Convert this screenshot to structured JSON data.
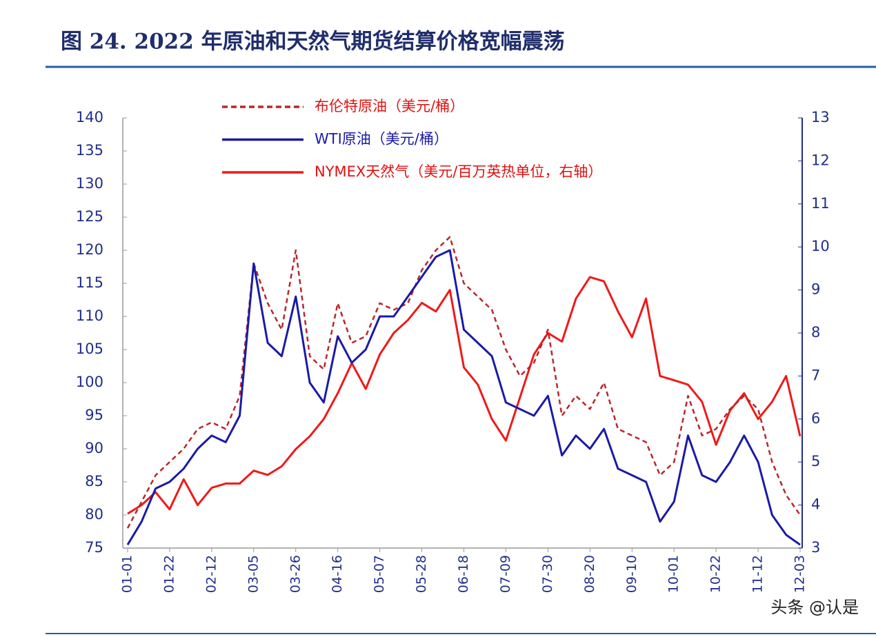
{
  "chart_data": {
    "type": "line",
    "title": "图 24. 2022 年原油和天然气期货结算价格宽幅震荡",
    "watermark": "头条 @认是",
    "categories": [
      "01-01",
      null,
      null,
      "01-22",
      null,
      null,
      "02-12",
      null,
      null,
      "03-05",
      null,
      null,
      "03-26",
      null,
      null,
      "04-16",
      null,
      null,
      "05-07",
      null,
      null,
      "05-28",
      null,
      null,
      "06-18",
      null,
      null,
      "07-09",
      null,
      null,
      "07-30",
      null,
      null,
      "08-20",
      null,
      null,
      "09-10",
      null,
      null,
      "10-01",
      null,
      null,
      "10-22",
      null,
      null,
      "11-12",
      null,
      null,
      "12-03"
    ],
    "series": [
      {
        "name": "布伦特原油（美元/桶）",
        "color": "#b8262a",
        "line_style": "dashed",
        "values": [
          78,
          82,
          86,
          88,
          90,
          93,
          94,
          93,
          98,
          118,
          112,
          108,
          120,
          104,
          102,
          112,
          106,
          107,
          112,
          111,
          112,
          117,
          120,
          122,
          115,
          113,
          111,
          105,
          101,
          103,
          108,
          95,
          98,
          96,
          100,
          93,
          92,
          91,
          86,
          88,
          98,
          92,
          93,
          96,
          98,
          96,
          88,
          83,
          80
        ]
      },
      {
        "name": "WTI原油（美元/桶）",
        "color": "#1a1aa6",
        "line_style": "solid",
        "values": [
          75.5,
          79,
          84,
          85,
          87,
          90,
          92,
          91,
          95,
          118,
          106,
          104,
          113,
          100,
          97,
          107,
          103,
          105,
          110,
          110,
          113,
          116,
          119,
          120,
          108,
          106,
          104,
          97,
          96,
          95,
          98,
          89,
          92,
          90,
          93,
          87,
          86,
          85,
          79,
          82,
          92,
          86,
          85,
          88,
          92,
          88,
          80,
          77,
          75.5
        ]
      },
      {
        "name": "NYMEX天然气（美元/百万英热单位，右轴）",
        "color": "#f01818",
        "line_style": "solid",
        "axis": "y2",
        "values": [
          3.8,
          4.0,
          4.3,
          3.9,
          4.6,
          4.0,
          4.4,
          4.5,
          4.5,
          4.8,
          4.7,
          4.9,
          5.3,
          5.6,
          6.0,
          6.6,
          7.3,
          6.7,
          7.5,
          8.0,
          8.3,
          8.7,
          8.5,
          9.0,
          7.2,
          6.8,
          6.0,
          5.5,
          6.5,
          7.5,
          8.0,
          7.8,
          8.8,
          9.3,
          9.2,
          8.5,
          7.9,
          8.8,
          7.0,
          6.9,
          6.8,
          6.4,
          5.4,
          6.2,
          6.6,
          6.0,
          6.4,
          7.0,
          5.6
        ]
      }
    ],
    "ylim": [
      75,
      140
    ],
    "yticks": [
      75,
      80,
      85,
      90,
      95,
      100,
      105,
      110,
      115,
      120,
      125,
      130,
      135,
      140
    ],
    "y2lim": [
      3,
      13
    ],
    "y2ticks": [
      3,
      4,
      5,
      6,
      7,
      8,
      9,
      10,
      11,
      12,
      13
    ],
    "grid": false
  }
}
